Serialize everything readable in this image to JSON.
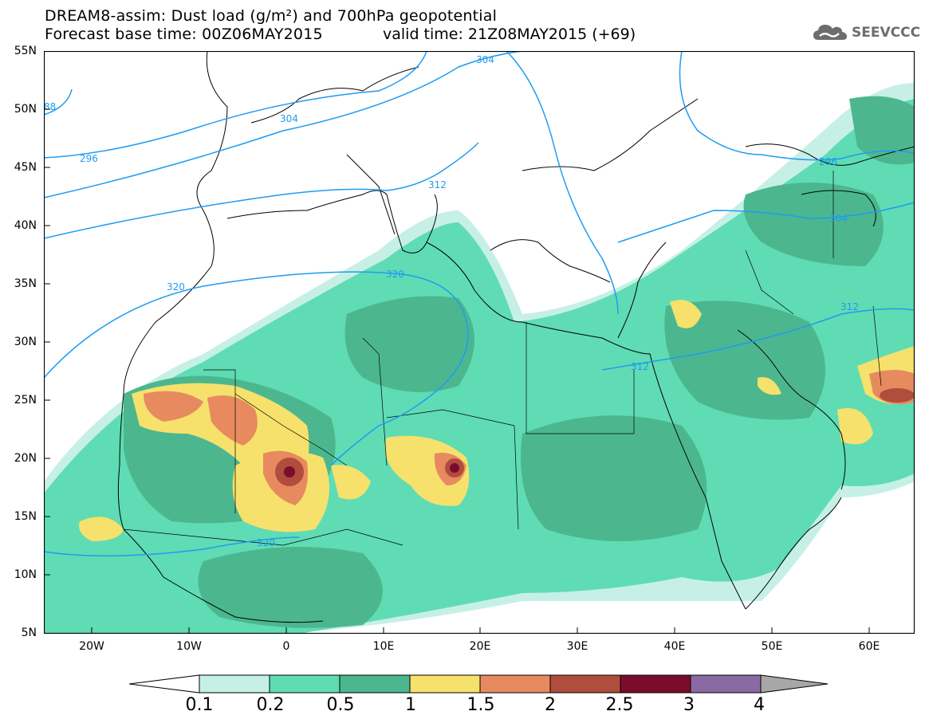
{
  "title": {
    "line1": "DREAM8-assim: Dust load (g/m²) and 700hPa geopotential",
    "line2a": "Forecast base time: 00Z06MAY2015",
    "line2b": "valid time: 21Z08MAY2015 (+69)"
  },
  "logo": {
    "text": "SEEVCCC",
    "icon": "cloud-logo-icon"
  },
  "axes": {
    "lat_labels": [
      "55N",
      "50N",
      "45N",
      "40N",
      "35N",
      "30N",
      "25N",
      "20N",
      "15N",
      "10N",
      "5N"
    ],
    "lon_labels": [
      "20W",
      "10W",
      "0",
      "10E",
      "20E",
      "30E",
      "40E",
      "50E",
      "60E"
    ]
  },
  "contours": {
    "labels": [
      "304",
      "296",
      "304",
      "312",
      "296",
      "304",
      "320",
      "312",
      "320",
      "312",
      "320",
      "88"
    ],
    "color": "#1f9cf0"
  },
  "colorbar": {
    "ticks": [
      "0.1",
      "0.2",
      "0.5",
      "1",
      "1.5",
      "2",
      "2.5",
      "3",
      "4"
    ],
    "colors": [
      "#ffffff",
      "#c6f0e6",
      "#5fdcb4",
      "#4cb78f",
      "#f6e16c",
      "#e88a60",
      "#b14d3c",
      "#7a0d2c",
      "#8a6aa2",
      "#a7a7a7"
    ]
  }
}
